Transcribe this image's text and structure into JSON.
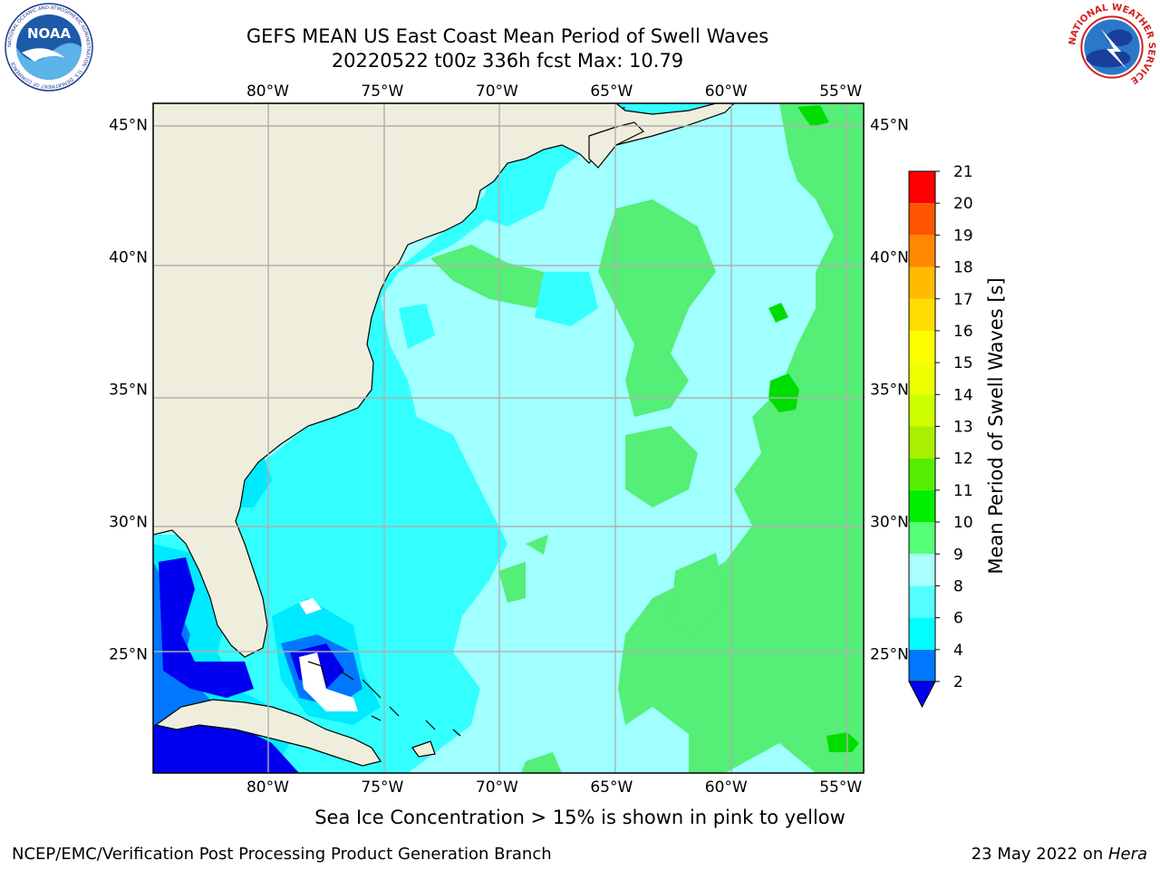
{
  "title": {
    "line1": "GEFS MEAN US East Coast Mean Period of Swell Waves",
    "line2": "20220522 t00z 336h fcst   Max: 10.79"
  },
  "logos": {
    "noaa": {
      "text": "NOAA",
      "ring_text": "NATIONAL OCEANIC AND ATMOSPHERIC ADMINISTRATION · U.S. DEPARTMENT OF COMMERCE"
    },
    "nws": {
      "ring_text": "NATIONAL WEATHER SERVICE"
    }
  },
  "map": {
    "projection": "lat-lon",
    "lon_range": [
      -85,
      -54
    ],
    "lat_range": [
      20.5,
      45.8
    ],
    "lon_ticks": [
      {
        "value": -80,
        "label": "80°W"
      },
      {
        "value": -75,
        "label": "75°W"
      },
      {
        "value": -70,
        "label": "70°W"
      },
      {
        "value": -65,
        "label": "65°W"
      },
      {
        "value": -60,
        "label": "60°W"
      },
      {
        "value": -55,
        "label": "55°W"
      }
    ],
    "lat_ticks": [
      {
        "value": 45,
        "label": "45°N"
      },
      {
        "value": 40,
        "label": "40°N"
      },
      {
        "value": 35,
        "label": "35°N"
      },
      {
        "value": 30,
        "label": "30°N"
      },
      {
        "value": 25,
        "label": "25°N"
      }
    ],
    "grid": true,
    "land_color": "#efeedd",
    "field": {
      "variable": "Mean Period of Swell Waves",
      "units": "s",
      "max_value": 10.79,
      "description_regions": [
        {
          "area": "Gulf of Mexico / Florida Straits / Caribbean",
          "period_band": "2-6",
          "color": "#0000ee"
        },
        {
          "area": "near-coast shelf US East Coast",
          "period_band": "6-8",
          "color": "#00ffff"
        },
        {
          "area": "central Atlantic",
          "period_band": "8-9",
          "color": "#a0ffff"
        },
        {
          "area": "eastern Atlantic",
          "period_band": "9-10",
          "color": "#55ee77"
        },
        {
          "area": "isolated spots",
          "period_band": "10-11",
          "color": "#00dd00"
        }
      ]
    }
  },
  "colorbar": {
    "label": "Mean Period of Swell Waves [s]",
    "ticks": [
      "2",
      "4",
      "6",
      "8",
      "9",
      "10",
      "11",
      "12",
      "13",
      "14",
      "15",
      "16",
      "17",
      "18",
      "19",
      "20",
      "21"
    ],
    "colors": [
      "#0077ff",
      "#00ffff",
      "#55ffff",
      "#aaffff",
      "#55ff77",
      "#00ee00",
      "#55ee00",
      "#aaee00",
      "#ccff00",
      "#eeff00",
      "#ffff00",
      "#ffdd00",
      "#ffbb00",
      "#ff8800",
      "#ff5500",
      "#ff0000"
    ],
    "under_color": "#0000ee",
    "extend": "min"
  },
  "caption": "Sea Ice Concentration > 15% is shown in pink to yellow",
  "footer": {
    "left": "NCEP/EMC/Verification Post Processing Product Generation Branch",
    "right_prefix": "23 May 2022 on ",
    "right_machine": "Hera"
  }
}
